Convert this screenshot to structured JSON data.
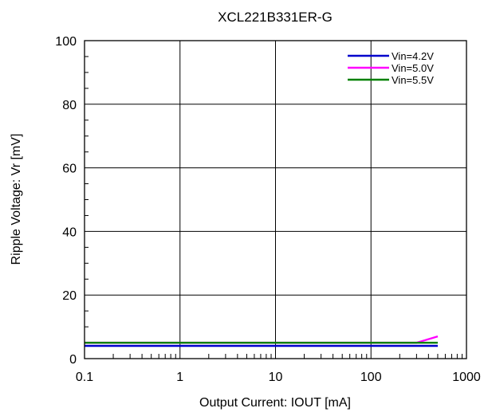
{
  "chart_data": {
    "type": "line",
    "title": "XCL221B331ER-G",
    "xlabel": "Output  Current: IOUT [mA]",
    "ylabel": "Ripple Voltage: Vr [mV]",
    "xscale": "log",
    "xlim": [
      0.1,
      1000
    ],
    "ylim": [
      0,
      100
    ],
    "x_ticks": [
      0.1,
      1,
      10,
      100,
      1000
    ],
    "x_tick_labels": [
      "0.1",
      "1",
      "10",
      "100",
      "1000"
    ],
    "y_ticks": [
      0,
      20,
      40,
      60,
      80,
      100
    ],
    "y_tick_labels": [
      "0",
      "20",
      "40",
      "60",
      "80",
      "100"
    ],
    "grid": true,
    "legend_position": "top-right",
    "series": [
      {
        "name": "Vin=4.2V",
        "color": "#0000cc",
        "x": [
          0.1,
          500
        ],
        "y": [
          4.0,
          4.0
        ]
      },
      {
        "name": "Vin=5.0V",
        "color": "#ff00ff",
        "x": [
          0.1,
          300,
          500
        ],
        "y": [
          5.0,
          5.0,
          7.0
        ]
      },
      {
        "name": "Vin=5.5V",
        "color": "#008000",
        "x": [
          0.1,
          500
        ],
        "y": [
          5.0,
          5.0
        ]
      }
    ]
  }
}
